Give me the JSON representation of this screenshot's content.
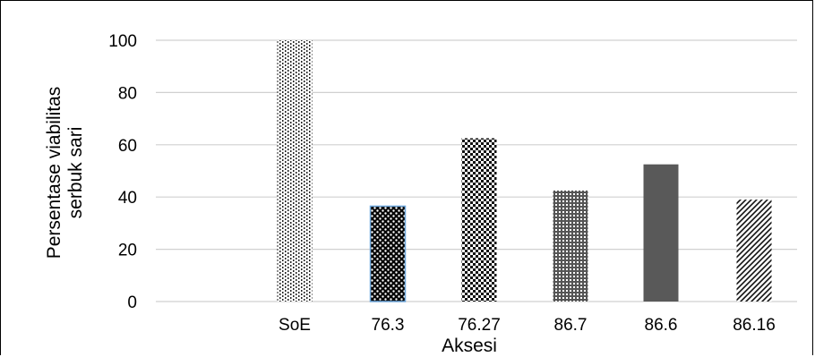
{
  "chart_data": {
    "type": "bar",
    "categories": [
      "SoE",
      "76.3",
      "76.27",
      "86.7",
      "86.6",
      "86.16"
    ],
    "values": [
      100,
      36.5,
      62.5,
      42.5,
      52.5,
      39
    ],
    "xlabel": "Aksesi",
    "ylabel": [
      "Persentase viabilitas",
      "serbuk sari"
    ],
    "ylim": [
      0,
      100
    ],
    "yticks": [
      0,
      20,
      40,
      60,
      80,
      100
    ],
    "grid": true,
    "legend": "none"
  },
  "colors": {
    "grid": "#d0d0d0",
    "bar_fill": [
      "vertical-dotted-lines",
      "black-dotted-lightblue-edge",
      "checker-pattern",
      "fine-grid-pattern",
      "solid-gray",
      "diagonal-hatch"
    ]
  }
}
